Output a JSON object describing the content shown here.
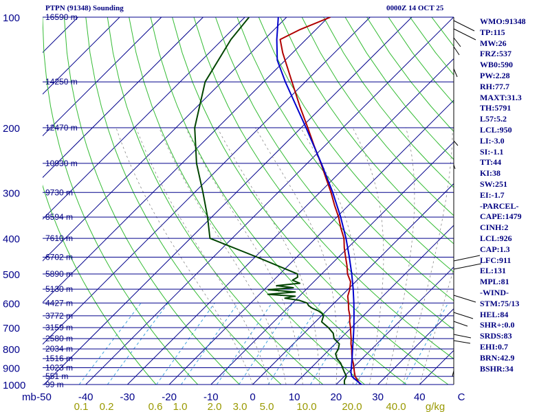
{
  "title_left": "PTPN (91348) Sounding",
  "title_right": "0000Z 14 OCT 25",
  "colors": {
    "isobar": "#00008b",
    "isotherm": "#00008b",
    "dry_adiabat": "#33bb33",
    "moist_adiabat": "#888888",
    "mixing_ratio": "#3aa0dd",
    "temperature": "#b00000",
    "dewpoint": "#004400",
    "parcel": "#0000cc",
    "text": "#000080",
    "mr_label": "#999900"
  },
  "indices": [
    "WMO:91348",
    "TP:115",
    "MW:26",
    "FRZ:537",
    "WB0:590",
    "PW:2.28",
    "RH:77.7",
    "MAXT:31.3",
    "TH:5791",
    "L57:5.2",
    "LCL:950",
    "LI:-3.0",
    "SI:-1.1",
    "TT:44",
    "KI:38",
    "SW:251",
    "EI:-1.7",
    "-PARCEL-",
    "CAPE:1479",
    "CINH:2",
    "LCL:926",
    "CAP:1.3",
    "LFC:911",
    "EL:131",
    "MPL:81",
    "-WIND-",
    "STM:75/13",
    "HEL:84",
    "SHR+:0.0",
    "SRDS:83",
    "EHI:0.7",
    "BRN:42.9",
    "BSHR:34"
  ],
  "chart_data": {
    "type": "line",
    "x_axis": {
      "label": "",
      "unit_label": "mb",
      "ticks": [
        -50,
        -40,
        -30,
        -20,
        -10,
        0,
        10,
        20,
        30,
        40,
        50
      ],
      "tick_labels": [
        "-50",
        "-40",
        "-30",
        "-20",
        "-10",
        "0",
        "10",
        "20",
        "30",
        "40",
        "C"
      ]
    },
    "y_axis": {
      "scale": "log",
      "ylim": [
        1000,
        100
      ],
      "ticks": [
        100,
        200,
        300,
        400,
        500,
        600,
        700,
        800,
        900,
        1000
      ],
      "tick_labels": [
        "100",
        "200",
        "300",
        "400",
        "500",
        "600",
        "700",
        "800",
        "900",
        "1000"
      ]
    },
    "height_labels": [
      {
        "p": 100,
        "label": "16590 m"
      },
      {
        "p": 150,
        "label": "14250 m"
      },
      {
        "p": 200,
        "label": "12470 m"
      },
      {
        "p": 250,
        "label": "10930 m"
      },
      {
        "p": 300,
        "label": "9730 m"
      },
      {
        "p": 350,
        "label": "8594 m"
      },
      {
        "p": 400,
        "label": "7610 m"
      },
      {
        "p": 450,
        "label": "6702 m"
      },
      {
        "p": 500,
        "label": "5890 m"
      },
      {
        "p": 550,
        "label": "5130 m"
      },
      {
        "p": 600,
        "label": "4427 m"
      },
      {
        "p": 650,
        "label": "3772 m"
      },
      {
        "p": 700,
        "label": "3159 m"
      },
      {
        "p": 750,
        "label": "2580 m"
      },
      {
        "p": 800,
        "label": "2034 m"
      },
      {
        "p": 850,
        "label": "1516 m"
      },
      {
        "p": 900,
        "label": "1023 m"
      },
      {
        "p": 950,
        "label": "551 m"
      },
      {
        "p": 1000,
        "label": "99 m"
      }
    ],
    "mixing_ratio_scale": {
      "unit": "g/kg",
      "labels": [
        "0.1",
        "0.2",
        "0.6",
        "1.0",
        "2.0",
        "3.0",
        "5.0",
        "10.0",
        "20.0",
        "40.0"
      ],
      "values": [
        0.1,
        0.2,
        0.6,
        1.0,
        2.0,
        3.0,
        5.0,
        10.0,
        20.0,
        40.0
      ]
    },
    "series": [
      {
        "key": "temperature",
        "points": [
          [
            1005,
            26.5
          ],
          [
            1000,
            25.8
          ],
          [
            975,
            24.2
          ],
          [
            950,
            22.6
          ],
          [
            925,
            21.4
          ],
          [
            900,
            20.2
          ],
          [
            875,
            19.0
          ],
          [
            850,
            17.6
          ],
          [
            825,
            16.4
          ],
          [
            800,
            15.2
          ],
          [
            775,
            13.8
          ],
          [
            750,
            12.6
          ],
          [
            725,
            11.2
          ],
          [
            700,
            9.8
          ],
          [
            675,
            8.2
          ],
          [
            650,
            6.8
          ],
          [
            625,
            5.0
          ],
          [
            600,
            3.4
          ],
          [
            575,
            1.6
          ],
          [
            550,
            0.4
          ],
          [
            525,
            -1.2
          ],
          [
            500,
            -3.8
          ],
          [
            475,
            -5.9
          ],
          [
            450,
            -8.3
          ],
          [
            425,
            -10.8
          ],
          [
            400,
            -13.2
          ],
          [
            375,
            -16.4
          ],
          [
            350,
            -19.6
          ],
          [
            325,
            -23.4
          ],
          [
            300,
            -27.3
          ],
          [
            275,
            -31.8
          ],
          [
            250,
            -36.7
          ],
          [
            225,
            -42.3
          ],
          [
            200,
            -48.4
          ],
          [
            175,
            -55.4
          ],
          [
            150,
            -63.2
          ],
          [
            125,
            -72.4
          ],
          [
            115,
            -76.2
          ],
          [
            108,
            -73.8
          ],
          [
            100,
            -69.5
          ]
        ]
      },
      {
        "key": "dewpoint",
        "points": [
          [
            1005,
            23.6
          ],
          [
            1000,
            22.0
          ],
          [
            975,
            21.0
          ],
          [
            950,
            20.5
          ],
          [
            925,
            19.0
          ],
          [
            900,
            17.5
          ],
          [
            875,
            16.0
          ],
          [
            850,
            14.0
          ],
          [
            825,
            12.5
          ],
          [
            800,
            12.0
          ],
          [
            775,
            11.0
          ],
          [
            750,
            8.5
          ],
          [
            725,
            7.0
          ],
          [
            700,
            4.5
          ],
          [
            675,
            1.5
          ],
          [
            650,
            0.5
          ],
          [
            640,
            -0.5
          ],
          [
            630,
            -2.0
          ],
          [
            620,
            -4.0
          ],
          [
            610,
            -5.5
          ],
          [
            600,
            -6.5
          ],
          [
            590,
            -9.0
          ],
          [
            582,
            -13.0
          ],
          [
            575,
            -11.0
          ],
          [
            568,
            -18.0
          ],
          [
            560,
            -12.0
          ],
          [
            552,
            -19.0
          ],
          [
            545,
            -13.5
          ],
          [
            538,
            -18.0
          ],
          [
            530,
            -13.0
          ],
          [
            520,
            -15.5
          ],
          [
            510,
            -15.0
          ],
          [
            500,
            -15.8
          ],
          [
            450,
            -29.5
          ],
          [
            400,
            -45.3
          ],
          [
            350,
            -51.0
          ],
          [
            300,
            -58.0
          ],
          [
            250,
            -66.5
          ],
          [
            200,
            -75.5
          ],
          [
            150,
            -84.0
          ],
          [
            115,
            -88.0
          ],
          [
            100,
            -89.0
          ]
        ]
      },
      {
        "key": "parcel",
        "points": [
          [
            1005,
            26.5
          ],
          [
            975,
            23.9
          ],
          [
            950,
            21.8
          ],
          [
            926,
            20.6
          ],
          [
            900,
            19.6
          ],
          [
            850,
            17.6
          ],
          [
            800,
            15.4
          ],
          [
            750,
            13.1
          ],
          [
            700,
            10.6
          ],
          [
            650,
            7.8
          ],
          [
            600,
            4.7
          ],
          [
            550,
            1.2
          ],
          [
            500,
            -2.8
          ],
          [
            450,
            -7.4
          ],
          [
            400,
            -12.7
          ],
          [
            350,
            -19.1
          ],
          [
            300,
            -26.9
          ],
          [
            250,
            -36.6
          ],
          [
            200,
            -48.8
          ],
          [
            150,
            -64.8
          ],
          [
            131,
            -71.9
          ],
          [
            115,
            -77.0
          ],
          [
            100,
            -82.0
          ]
        ]
      }
    ]
  }
}
